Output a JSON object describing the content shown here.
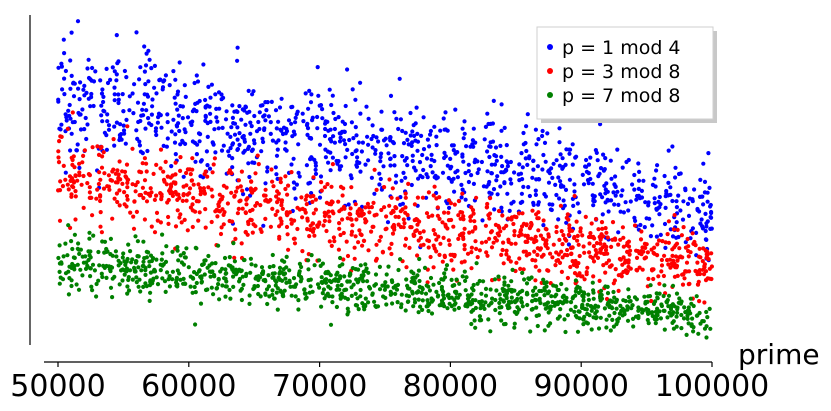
{
  "chart_data": {
    "type": "scatter",
    "title": "",
    "xlabel": "prime",
    "ylabel": "",
    "xlim": [
      50000,
      100000
    ],
    "ylim": [
      0,
      1
    ],
    "x_ticks": [
      50000,
      60000,
      70000,
      80000,
      90000,
      100000
    ],
    "x_tick_labels": [
      "50000",
      "60000",
      "70000",
      "80000",
      "90000",
      "100000"
    ],
    "y_ticks_shown": false,
    "grid": false,
    "legend": {
      "position": "top-right",
      "shadow": true
    },
    "points_per_series": 1100,
    "series": [
      {
        "name": "p = 1 mod 4",
        "color": "#0000ff",
        "trend_start": [
          50000,
          0.75
        ],
        "trend_end": [
          100000,
          0.42
        ],
        "spread": 0.08
      },
      {
        "name": "p = 3 mod 8",
        "color": "#ff0000",
        "trend_start": [
          50000,
          0.51
        ],
        "trend_end": [
          100000,
          0.24
        ],
        "spread": 0.055
      },
      {
        "name": "p = 7 mod 8",
        "color": "#008000",
        "trend_start": [
          50000,
          0.25
        ],
        "trend_end": [
          100000,
          0.09
        ],
        "spread": 0.035
      }
    ]
  }
}
